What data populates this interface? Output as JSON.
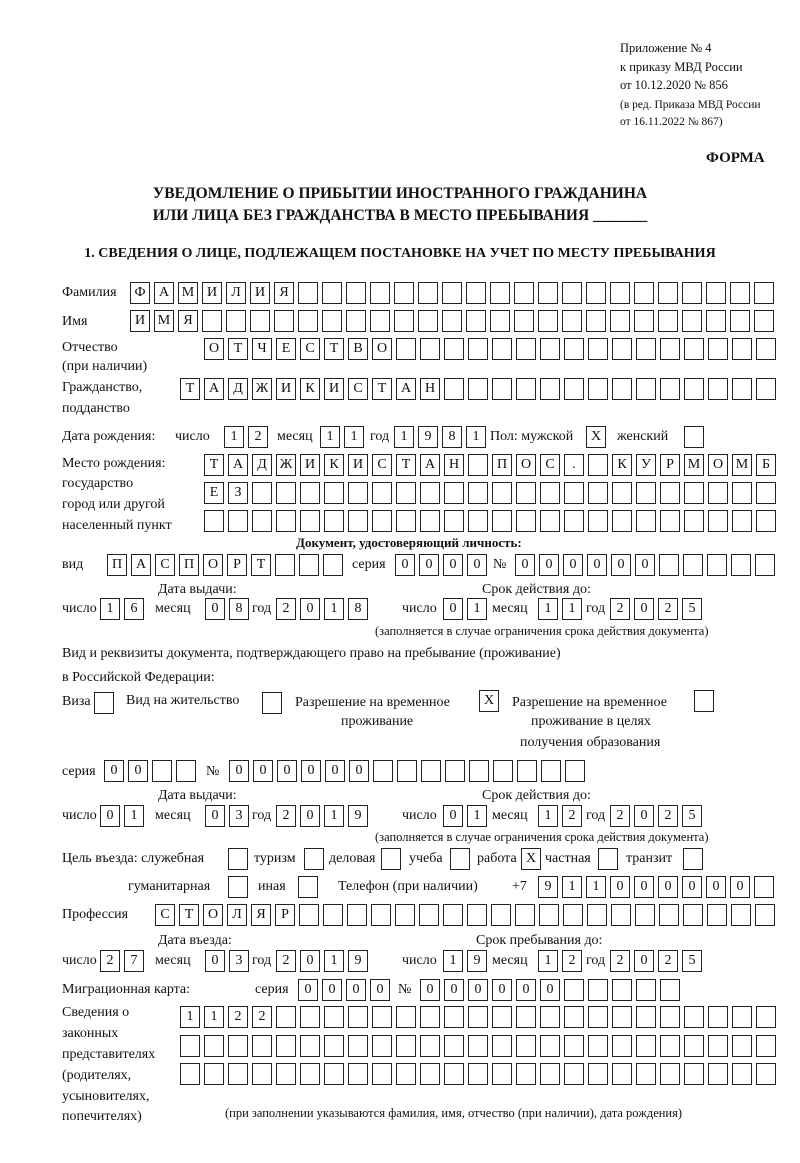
{
  "header": {
    "appendix": "Приложение № 4",
    "order": "к приказу МВД России",
    "order_date": "от 10.12.2020 № 856",
    "edition": "(в ред. Приказа МВД России",
    "edition_date": "от 16.11.2022 № 867)",
    "form_label": "ФОРМА",
    "title_line1": "УВЕДОМЛЕНИЕ О ПРИБЫТИИ ИНОСТРАННОГО ГРАЖДАНИНА",
    "title_line2": "ИЛИ ЛИЦА БЕЗ ГРАЖДАНСТВА В МЕСТО ПРЕБЫВАНИЯ _______",
    "section1": "1. СВЕДЕНИЯ О ЛИЦЕ, ПОДЛЕЖАЩЕМ ПОСТАНОВКЕ НА УЧЕТ ПО МЕСТУ ПРЕБЫВАНИЯ"
  },
  "labels": {
    "surname": "Фамилия",
    "name": "Имя",
    "patronymic": "Отчество",
    "patronymic_note": "(при наличии)",
    "citizenship": "Гражданство,",
    "citizenship2": "подданство",
    "birth_date": "Дата рождения:",
    "day": "число",
    "month": "месяц",
    "year": "год",
    "sex_male": "Пол: мужской",
    "sex_female": "женский",
    "birthplace1": "Место рождения:",
    "birthplace2": "государство",
    "birthplace3": "город или другой",
    "birthplace4": "населенный пункт",
    "id_doc": "Документ, удостоверяющий личность:",
    "kind": "вид",
    "series": "серия",
    "number": "№",
    "issue_date": "Дата выдачи:",
    "valid_until": "Срок действия до:",
    "validity_note": "(заполняется в случае ограничения срока действия документа)",
    "stay_doc1": "Вид и реквизиты документа, подтверждающего право на пребывание (проживание)",
    "stay_doc2": "в Российской Федерации:",
    "visa": "Виза",
    "residence_permit": "Вид на жительство",
    "temp_residence1": "Разрешение на временное",
    "temp_residence2": "проживание",
    "temp_edu1": "Разрешение на временное",
    "temp_edu2": "проживание в целях",
    "temp_edu3": "получения образования",
    "purpose": "Цель въезда: служебная",
    "tourism": "туризм",
    "business": "деловая",
    "study": "учеба",
    "work": "работа",
    "private": "частная",
    "transit": "транзит",
    "humanitarian": "гуманитарная",
    "other": "иная",
    "phone": "Телефон (при наличии)",
    "phone_prefix": "+7",
    "profession": "Профессия",
    "entry_date": "Дата въезда:",
    "stay_until": "Срок пребывания до:",
    "migration_card": "Миграционная карта:",
    "reps1": "Сведения о",
    "reps2": "законных",
    "reps3": "представителях",
    "reps4": "(родителях,",
    "reps5": "усыновителях,",
    "reps6": "попечителях)",
    "reps_note": "(при заполнении указываются фамилия, имя, отчество (при наличии), дата рождения)"
  },
  "values": {
    "surname": "ФАМИЛИЯ",
    "name": "ИМЯ",
    "patronymic": "ОТЧЕСТВО",
    "citizenship": "ТАДЖИКИСТАН",
    "birth_day": "12",
    "birth_month": "11",
    "birth_year": "1981",
    "sex_male": "X",
    "sex_female": "",
    "birthplace_row1": "ТАДЖИКИСТАН ПОС. КУРМОМБ",
    "birthplace_row2": "ЕЗ",
    "birthplace_row3": "",
    "id_kind": "ПАСПОРТ",
    "id_series": "0000",
    "id_number": "000000",
    "id_issue_day": "16",
    "id_issue_month": "08",
    "id_issue_year": "2018",
    "id_valid_day": "01",
    "id_valid_month": "11",
    "id_valid_year": "2025",
    "visa": "",
    "residence_permit": "",
    "temp_residence": "X",
    "temp_edu": "",
    "stay_series": "00",
    "stay_number": "000000",
    "stay_issue_day": "01",
    "stay_issue_month": "03",
    "stay_issue_year": "2019",
    "stay_valid_day": "01",
    "stay_valid_month": "12",
    "stay_valid_year": "2025",
    "purpose_official": "",
    "purpose_tourism": "",
    "purpose_business": "",
    "purpose_study": "",
    "purpose_work": "X",
    "purpose_private": "",
    "purpose_transit": "",
    "purpose_humanitarian": "",
    "purpose_other": "",
    "phone": "911000000",
    "profession": "СТОЛЯР",
    "entry_day": "27",
    "entry_month": "03",
    "entry_year": "2019",
    "stay_until_day": "19",
    "stay_until_month": "12",
    "stay_until_year": "2025",
    "mig_series": "0000",
    "mig_number": "000000",
    "reps_row1": "1122",
    "reps_row2": "",
    "reps_row3": ""
  }
}
